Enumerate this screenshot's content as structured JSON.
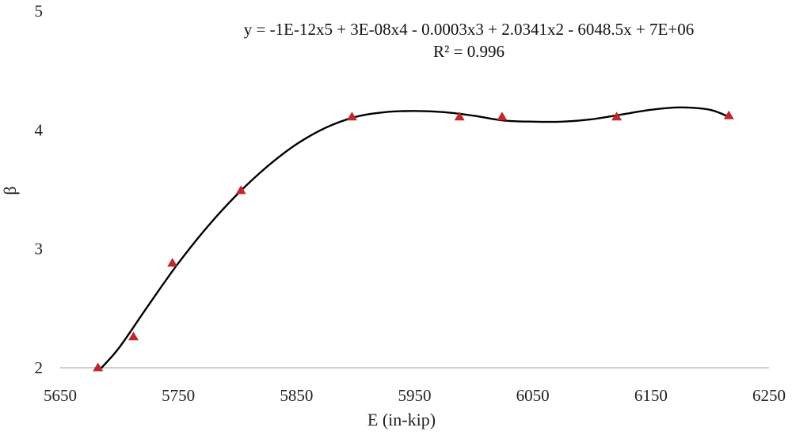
{
  "chart_data": {
    "type": "scatter",
    "xlabel": "E (in-kip)",
    "ylabel": "β",
    "xlim": [
      5650,
      6250
    ],
    "ylim": [
      2,
      5
    ],
    "x_ticks": [
      5650,
      5750,
      5850,
      5950,
      6050,
      6150,
      6250
    ],
    "y_ticks": [
      2,
      3,
      4,
      5
    ],
    "grid": false,
    "series": [
      {
        "marker": "triangle",
        "color": "#c0282d",
        "points": [
          {
            "x": 5682,
            "y": 2.0
          },
          {
            "x": 5712,
            "y": 2.26
          },
          {
            "x": 5745,
            "y": 2.88
          },
          {
            "x": 5803,
            "y": 3.49
          },
          {
            "x": 5897,
            "y": 4.11
          },
          {
            "x": 5988,
            "y": 4.11
          },
          {
            "x": 6024,
            "y": 4.11
          },
          {
            "x": 6121,
            "y": 4.11
          },
          {
            "x": 6216,
            "y": 4.12
          }
        ]
      }
    ],
    "trendline": {
      "type": "polynomial",
      "order": 5,
      "color": "#000000",
      "equation": "y = -1E-12x5 + 3E-08x4 - 0.0003x3 + 2.0341x2 - 6048.5x + 7E+06",
      "r_squared": "R² = 0.996",
      "curve": [
        {
          "x": 5685,
          "y": 2.0
        },
        {
          "x": 5700,
          "y": 2.17
        },
        {
          "x": 5725,
          "y": 2.53
        },
        {
          "x": 5750,
          "y": 2.88
        },
        {
          "x": 5775,
          "y": 3.19
        },
        {
          "x": 5800,
          "y": 3.46
        },
        {
          "x": 5825,
          "y": 3.69
        },
        {
          "x": 5850,
          "y": 3.88
        },
        {
          "x": 5875,
          "y": 4.02
        },
        {
          "x": 5900,
          "y": 4.11
        },
        {
          "x": 5925,
          "y": 4.15
        },
        {
          "x": 5950,
          "y": 4.16
        },
        {
          "x": 5975,
          "y": 4.15
        },
        {
          "x": 6000,
          "y": 4.12
        },
        {
          "x": 6025,
          "y": 4.08
        },
        {
          "x": 6050,
          "y": 4.07
        },
        {
          "x": 6075,
          "y": 4.07
        },
        {
          "x": 6100,
          "y": 4.09
        },
        {
          "x": 6125,
          "y": 4.13
        },
        {
          "x": 6150,
          "y": 4.17
        },
        {
          "x": 6175,
          "y": 4.19
        },
        {
          "x": 6200,
          "y": 4.17
        },
        {
          "x": 6216,
          "y": 4.11
        }
      ]
    }
  }
}
